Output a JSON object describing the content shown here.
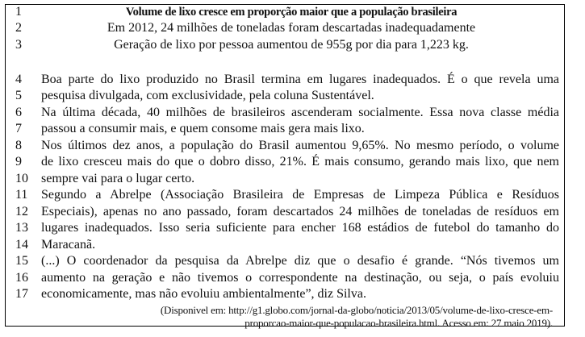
{
  "title": "Volume de lixo cresce em proporção maior que a população brasileira",
  "lines": [
    {
      "n": "1",
      "text": "Volume de lixo cresce em proporção maior que a população brasileira"
    },
    {
      "n": "2",
      "text": "Em 2012, 24 milhões de toneladas foram descartadas inadequadamente"
    },
    {
      "n": "3",
      "text": "Geração de lixo por pessoa aumentou de 955g por dia para 1,223 kg."
    },
    {
      "n": "4",
      "text": "Boa parte do lixo produzido no Brasil termina em lugares inadequados. É o que revela uma"
    },
    {
      "n": "5",
      "text": "pesquisa divulgada, com exclusividade, pela coluna Sustentável."
    },
    {
      "n": "6",
      "text": "Na última década, 40 milhões de brasileiros ascenderam socialmente. Essa nova classe média"
    },
    {
      "n": "7",
      "text": "passou a consumir mais, e quem consome mais gera mais lixo."
    },
    {
      "n": "8",
      "text": "Nos últimos dez anos, a população do Brasil aumentou 9,65%. No mesmo período, o volume"
    },
    {
      "n": "9",
      "text": "de lixo cresceu mais do que o dobro disso, 21%. É mais consumo, gerando mais lixo, que nem"
    },
    {
      "n": "10",
      "text": "sempre vai para o lugar certo."
    },
    {
      "n": "11",
      "text": "Segundo a Abrelpe (Associação Brasileira de Empresas de Limpeza Pública e Resíduos"
    },
    {
      "n": "12",
      "text": "Especiais), apenas no ano passado, foram descartados 24 milhões de toneladas de resíduos em"
    },
    {
      "n": "13",
      "text": "lugares inadequados. Isso seria suficiente para encher 168 estádios de futebol do tamanho do"
    },
    {
      "n": "14",
      "text": "Maracanã."
    },
    {
      "n": "15",
      "text": "(...) O coordenador da pesquisa da Abrelpe diz que o desafio é grande. “Nós tivemos um"
    },
    {
      "n": "16",
      "text": "aumento na geração e não tivemos o correspondente na destinação, ou seja, o país evoluiu"
    },
    {
      "n": "17",
      "text": "economicamente, mas não evoluiu ambientalmente”, diz Silva."
    }
  ],
  "source": [
    "(Disponivel em: http://g1.globo.com/jornal-da-globo/noticia/2013/05/volume-de-lixo-cresce-em-",
    "proporcao-maior-que-populacao-brasileira.html. Acesso em: 27 maio 2019)."
  ]
}
